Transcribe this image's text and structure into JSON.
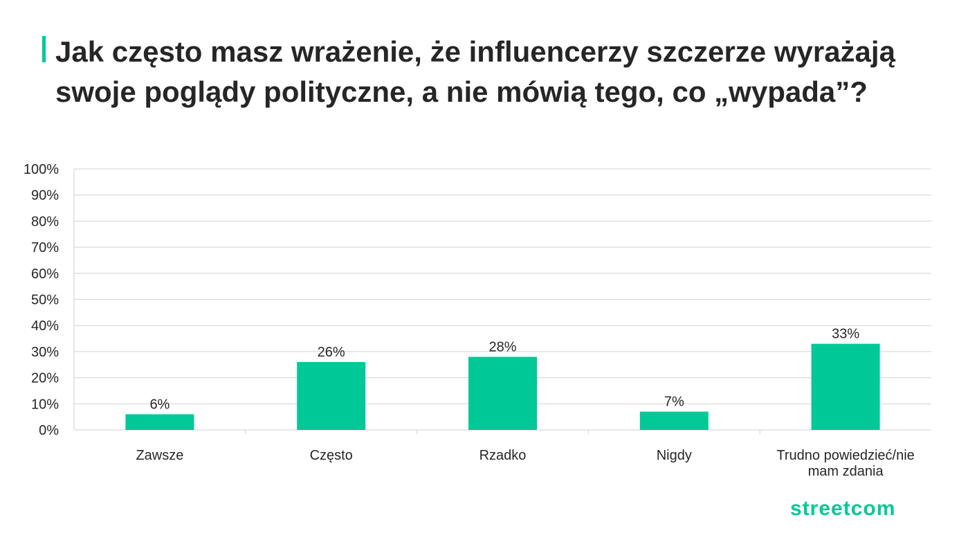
{
  "title": "Jak często masz wrażenie, że influencerzy szczerze wyrażają swoje poglądy polityczne, a nie mówią tego, co „wypada”?",
  "colors": {
    "accent": "#00c896",
    "bar": "#00c896",
    "grid": "#d0d0d0",
    "text": "#262626"
  },
  "chart_data": {
    "type": "bar",
    "categories": [
      [
        "Zawsze"
      ],
      [
        "Często"
      ],
      [
        "Rzadko"
      ],
      [
        "Nigdy"
      ],
      [
        "Trudno powiedzieć/nie",
        "mam zdania"
      ]
    ],
    "values": [
      6,
      26,
      28,
      7,
      33
    ],
    "data_labels": [
      "6%",
      "26%",
      "28%",
      "7%",
      "33%"
    ],
    "yticks": [
      "0%",
      "10%",
      "20%",
      "30%",
      "40%",
      "50%",
      "60%",
      "70%",
      "80%",
      "90%",
      "100%"
    ],
    "ylim": [
      0,
      100
    ],
    "grid": true,
    "legend": "none"
  },
  "logo": {
    "text": "streetcom"
  }
}
